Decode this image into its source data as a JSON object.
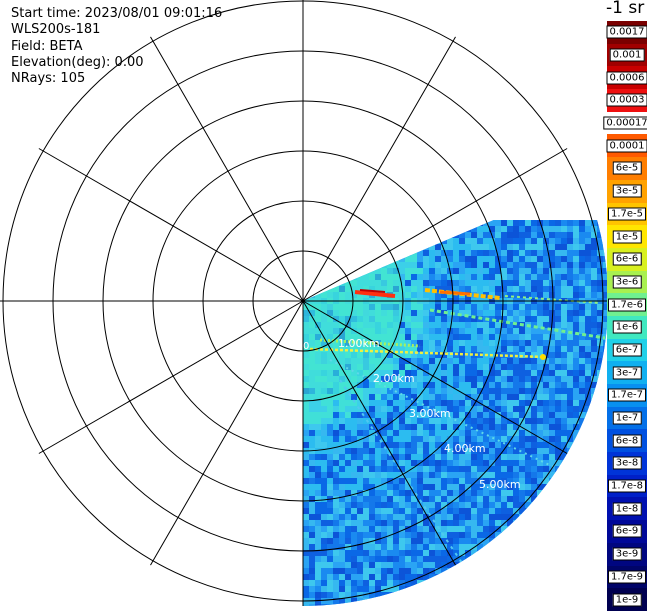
{
  "header": {
    "start_time": "Start time: 2023/08/01 09:01:16",
    "device": "WLS200s-181",
    "field": "Field: BETA",
    "elevation": "Elevation(deg): 0.00",
    "nrays": "NRays: 105"
  },
  "colorbar": {
    "title": "-1 sr",
    "labels": [
      "0.0017",
      "0.001",
      "0.0006",
      "0.0003",
      "0.00017",
      "0.0001",
      "6e-5",
      "3e-5",
      "1.7e-5",
      "1e-5",
      "6e-6",
      "3e-6",
      "1.7e-6",
      "1e-6",
      "6e-7",
      "3e-7",
      "1.7e-7",
      "1e-7",
      "6e-8",
      "3e-8",
      "1.7e-8",
      "1e-8",
      "6e-9",
      "3e-9",
      "1.7e-9",
      "1e-9"
    ],
    "colors": [
      "#7a0000",
      "#a00000",
      "#c80000",
      "#ee1010",
      "#ffffff",
      "#ff5a00",
      "#ff7e00",
      "#ffa200",
      "#ffc400",
      "#ffe600",
      "#d8f020",
      "#a8f050",
      "#70f090",
      "#40e8c0",
      "#20d0e8",
      "#10b0f0",
      "#0890f0",
      "#0470e8",
      "#0050e0",
      "#0034d8",
      "#0020c8",
      "#0010b0",
      "#000898",
      "#000680",
      "#000468",
      "#000050"
    ]
  },
  "rings": {
    "labels": [
      "0",
      "1.00km",
      "2.00km",
      "3.00km",
      "4.00km",
      "5.00km"
    ]
  },
  "icons": {
    "scan": "radar-scan-sector"
  }
}
